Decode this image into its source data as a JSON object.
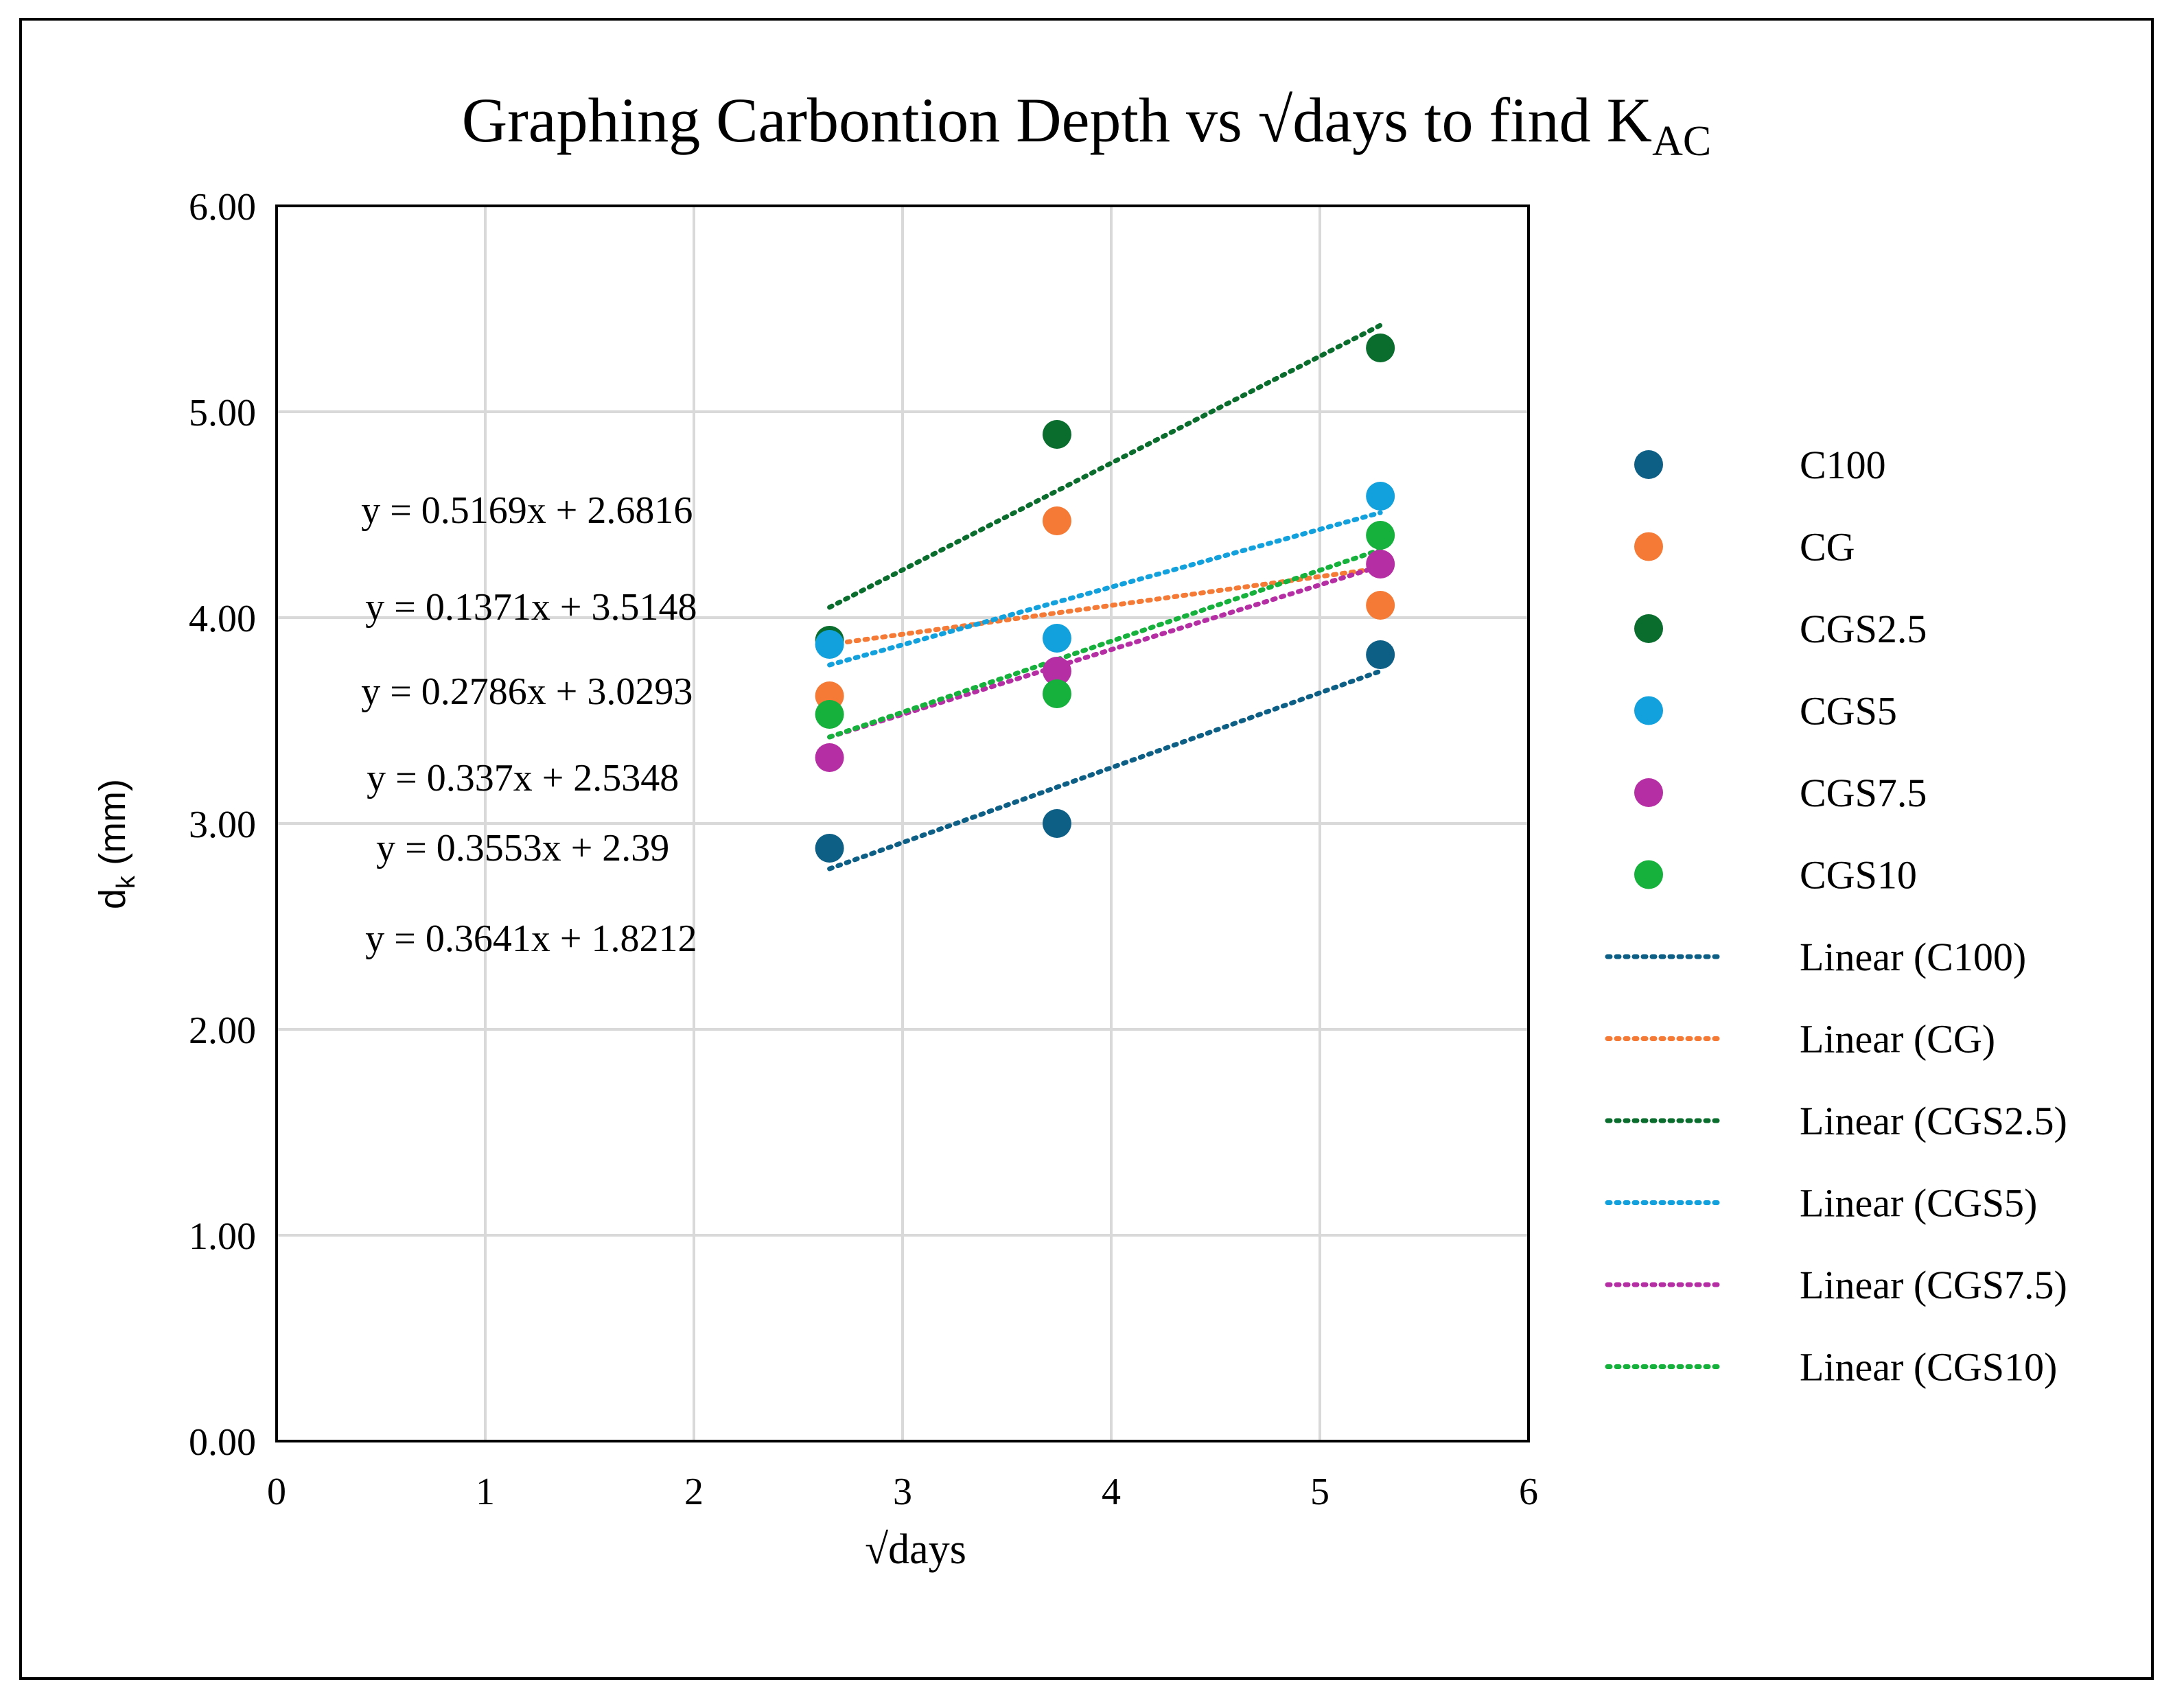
{
  "chart_data": {
    "type": "scatter",
    "title": {
      "main": "Graphing Carbontion Depth vs √days to find K",
      "subscript": "AC"
    },
    "xlabel": "√days",
    "ylabel": {
      "main": "d",
      "subscript": "k",
      "unit": " (mm)"
    },
    "xlim": [
      0,
      6
    ],
    "ylim": [
      0,
      6
    ],
    "x_ticks": [
      {
        "value": 0,
        "label": "0"
      },
      {
        "value": 1,
        "label": "1"
      },
      {
        "value": 2,
        "label": "2"
      },
      {
        "value": 3,
        "label": "3"
      },
      {
        "value": 4,
        "label": "4"
      },
      {
        "value": 5,
        "label": "5"
      },
      {
        "value": 6,
        "label": "6"
      }
    ],
    "y_ticks": [
      {
        "value": 0,
        "label": "0.00"
      },
      {
        "value": 1,
        "label": "1.00"
      },
      {
        "value": 2,
        "label": "2.00"
      },
      {
        "value": 3,
        "label": "3.00"
      },
      {
        "value": 4,
        "label": "4.00"
      },
      {
        "value": 5,
        "label": "5.00"
      },
      {
        "value": 6,
        "label": "6.00"
      }
    ],
    "grid": true,
    "legend_position": "right",
    "series": [
      {
        "name": "C100",
        "trend_name": "Linear (C100)",
        "color": "#0E5F86",
        "points": [
          [
            2.65,
            2.88
          ],
          [
            3.74,
            3.0
          ],
          [
            5.29,
            3.82
          ]
        ],
        "trend": [
          [
            2.65,
            2.78
          ],
          [
            5.29,
            3.74
          ]
        ]
      },
      {
        "name": "CG",
        "trend_name": "Linear (CG)",
        "color": "#F47A35",
        "points": [
          [
            2.65,
            3.62
          ],
          [
            3.74,
            4.47
          ],
          [
            5.29,
            4.06
          ]
        ],
        "trend": [
          [
            2.65,
            3.87
          ],
          [
            5.29,
            4.24
          ]
        ]
      },
      {
        "name": "CGS2.5",
        "trend_name": "Linear (CGS2.5)",
        "color": "#0A6D2E",
        "points": [
          [
            2.65,
            3.89
          ],
          [
            3.74,
            4.89
          ],
          [
            5.29,
            5.31
          ]
        ],
        "trend": [
          [
            2.65,
            4.05
          ],
          [
            5.29,
            5.42
          ]
        ]
      },
      {
        "name": "CGS5",
        "trend_name": "Linear (CGS5)",
        "color": "#12A1DD",
        "points": [
          [
            2.65,
            3.87
          ],
          [
            3.74,
            3.9
          ],
          [
            5.29,
            4.59
          ]
        ],
        "trend": [
          [
            2.65,
            3.77
          ],
          [
            5.29,
            4.51
          ]
        ]
      },
      {
        "name": "CGS7.5",
        "trend_name": "Linear (CGS7.5)",
        "color": "#B62EA3",
        "points": [
          [
            2.65,
            3.32
          ],
          [
            3.74,
            3.74
          ],
          [
            5.29,
            4.26
          ]
        ],
        "trend": [
          [
            2.65,
            3.42
          ],
          [
            5.29,
            4.25
          ]
        ]
      },
      {
        "name": "CGS10",
        "trend_name": "Linear (CGS10)",
        "color": "#16B13C",
        "points": [
          [
            2.65,
            3.53
          ],
          [
            3.74,
            3.63
          ],
          [
            5.29,
            4.4
          ]
        ],
        "trend": [
          [
            2.65,
            3.42
          ],
          [
            5.29,
            4.33
          ]
        ]
      }
    ],
    "annotations": [
      {
        "text": "y = 0.5169x + 2.6816",
        "at": [
          1.2,
          4.46
        ]
      },
      {
        "text": "y = 0.1371x + 3.5148",
        "at": [
          1.22,
          3.99
        ]
      },
      {
        "text": "y = 0.2786x + 3.0293",
        "at": [
          1.2,
          3.58
        ]
      },
      {
        "text": "y = 0.337x + 2.5348",
        "at": [
          1.18,
          3.16
        ]
      },
      {
        "text": "y = 0.3553x + 2.39",
        "at": [
          1.18,
          2.82
        ]
      },
      {
        "text": "y = 0.3641x + 1.8212",
        "at": [
          1.22,
          2.38
        ]
      }
    ]
  }
}
